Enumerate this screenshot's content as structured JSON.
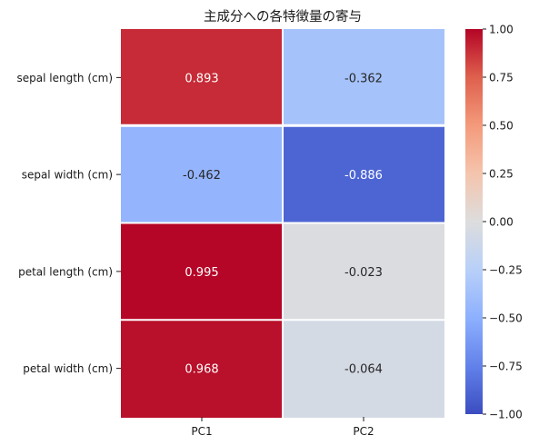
{
  "chart_data": {
    "type": "heatmap",
    "title": "主成分への各特徴量の寄与",
    "columns": [
      "PC1",
      "PC2"
    ],
    "rows": [
      "sepal length (cm)",
      "sepal width (cm)",
      "petal length (cm)",
      "petal width (cm)"
    ],
    "values": [
      [
        0.893,
        -0.362
      ],
      [
        -0.462,
        -0.886
      ],
      [
        0.995,
        -0.023
      ],
      [
        0.968,
        -0.064
      ]
    ],
    "cell_labels": [
      [
        "0.893",
        "-0.362"
      ],
      [
        "-0.462",
        "-0.886"
      ],
      [
        "0.995",
        "-0.023"
      ],
      [
        "0.968",
        "-0.064"
      ]
    ],
    "colormap": "coolwarm",
    "vmin": -1.0,
    "vmax": 1.0,
    "colorbar_ticks": [
      "1.00",
      "0.75",
      "0.50",
      "0.25",
      "0.00",
      "−0.25",
      "−0.50",
      "−0.75",
      "−1.00"
    ],
    "colorbar_tick_values": [
      1.0,
      0.75,
      0.5,
      0.25,
      0.0,
      -0.25,
      -0.5,
      -0.75,
      -1.0
    ],
    "grid": false,
    "colorbar_position": "right"
  }
}
